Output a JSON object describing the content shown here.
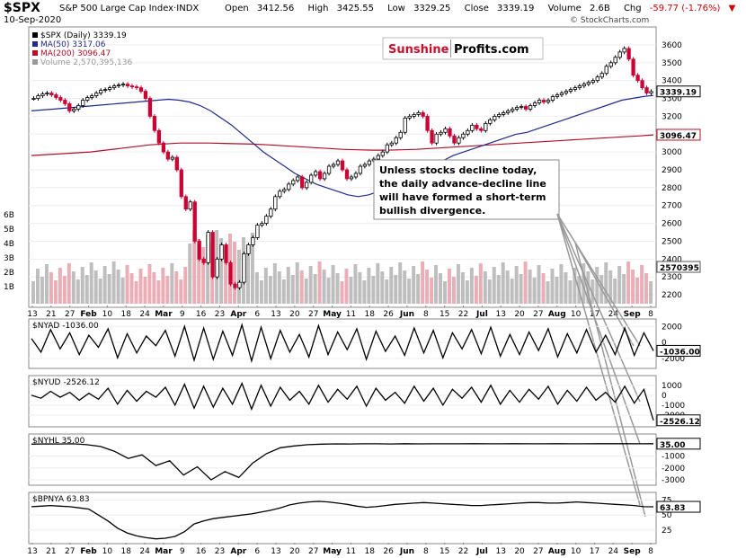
{
  "header": {
    "ticker": "$SPX",
    "index_name": "S&P 500 Large Cap Index",
    "exchange": "INDX",
    "date": "10-Sep-2020",
    "open_label": "Open",
    "open": "3412.56",
    "high_label": "High",
    "high": "3425.55",
    "low_label": "Low",
    "low": "3329.25",
    "close_label": "Close",
    "close": "3339.19",
    "volume_label": "Volume",
    "volume": "2.6B",
    "chg_label": "Chg",
    "chg": "-59.77 (-1.76%)",
    "credit": "© StockCharts.com"
  },
  "colors": {
    "up": "#000000",
    "down": "#cc0033",
    "ma50": "#1f2a8c",
    "ma200": "#b0102a",
    "vol_up": "#b3b3b3",
    "vol_down": "#e8a0aa"
  },
  "chart_data": [
    {
      "type": "line",
      "title": "$SPX (Daily) 3339.19",
      "legend": [
        {
          "label": "$SPX (Daily) 3339.19",
          "color": "#000000"
        },
        {
          "label": "MA(50) 3317.06",
          "color": "#1f2a8c"
        },
        {
          "label": "MA(200) 3096.47",
          "color": "#b0102a"
        },
        {
          "label": "Volume 2,570,395,136",
          "color": "#999999"
        }
      ],
      "ylim": [
        2150,
        3650
      ],
      "yticks": [
        2200,
        2300,
        2400,
        2500,
        2600,
        2700,
        2800,
        2900,
        3000,
        3100,
        3200,
        3300,
        3400,
        3500,
        3600
      ],
      "vol_ticks": [
        "1B",
        "2B",
        "3B",
        "4B",
        "5B",
        "6B"
      ],
      "tags": {
        "close": "3339.19",
        "ma200": "3096.47",
        "volume": "2570395"
      },
      "series": [
        {
          "name": "$SPX",
          "values": [
            3300,
            3315,
            3325,
            3330,
            3320,
            3305,
            3290,
            3270,
            3230,
            3240,
            3260,
            3290,
            3305,
            3315,
            3330,
            3345,
            3350,
            3360,
            3370,
            3375,
            3380,
            3370,
            3365,
            3360,
            3340,
            3300,
            3200,
            3120,
            3050,
            3000,
            2960,
            2970,
            2900,
            2750,
            2680,
            2720,
            2500,
            2400,
            2380,
            2550,
            2300,
            2400,
            2480,
            2380,
            2260,
            2240,
            2270,
            2430,
            2480,
            2520,
            2590,
            2600,
            2640,
            2680,
            2750,
            2780,
            2790,
            2820,
            2840,
            2860,
            2800,
            2830,
            2870,
            2890,
            2850,
            2880,
            2920,
            2930,
            2950,
            2900,
            2850,
            2860,
            2880,
            2920,
            2930,
            2950,
            2960,
            2980,
            3000,
            3040,
            3050,
            3080,
            3110,
            3190,
            3200,
            3210,
            3220,
            3200,
            3120,
            3050,
            3100,
            3110,
            3130,
            3090,
            3050,
            3080,
            3100,
            3120,
            3150,
            3130,
            3120,
            3160,
            3180,
            3200,
            3210,
            3220,
            3230,
            3240,
            3250,
            3255,
            3240,
            3260,
            3275,
            3290,
            3280,
            3290,
            3310,
            3320,
            3330,
            3340,
            3350,
            3360,
            3370,
            3380,
            3390,
            3400,
            3420,
            3440,
            3480,
            3500,
            3530,
            3560,
            3580,
            3520,
            3430,
            3400,
            3360,
            3330,
            3339
          ]
        },
        {
          "name": "MA(50)",
          "values": [
            3230,
            3235,
            3240,
            3245,
            3250,
            3255,
            3260,
            3265,
            3270,
            3275,
            3280,
            3285,
            3290,
            3295,
            3290,
            3280,
            3260,
            3230,
            3190,
            3150,
            3100,
            3050,
            3000,
            2960,
            2920,
            2880,
            2850,
            2820,
            2800,
            2780,
            2760,
            2750,
            2760,
            2780,
            2800,
            2830,
            2860,
            2890,
            2920,
            2950,
            2980,
            3000,
            3020,
            3040,
            3060,
            3080,
            3100,
            3110,
            3130,
            3150,
            3170,
            3190,
            3210,
            3230,
            3250,
            3270,
            3290,
            3300,
            3310,
            3317
          ]
        },
        {
          "name": "MA(200)",
          "values": [
            2980,
            2985,
            2990,
            2995,
            3000,
            3010,
            3020,
            3030,
            3040,
            3045,
            3050,
            3050,
            3050,
            3048,
            3046,
            3044,
            3040,
            3035,
            3030,
            3025,
            3020,
            3015,
            3012,
            3010,
            3010,
            3012,
            3015,
            3020,
            3025,
            3030,
            3035,
            3040,
            3045,
            3050,
            3055,
            3060,
            3065,
            3070,
            3075,
            3080,
            3085,
            3090,
            3096
          ]
        }
      ],
      "x_ticks": [
        "13",
        "21",
        "27",
        "Feb",
        "10",
        "18",
        "24",
        "Mar",
        "9",
        "16",
        "23",
        "Apr",
        "6",
        "13",
        "20",
        "27",
        "May",
        "11",
        "18",
        "26",
        "Jun",
        "8",
        "15",
        "22",
        "Jul",
        "13",
        "20",
        "27",
        "Aug",
        "10",
        "17",
        "24",
        "Sep",
        "8"
      ]
    },
    {
      "type": "line",
      "title": "$NYAD -1036.00",
      "ylim": [
        -3000,
        2700
      ],
      "yticks": [
        "2000",
        "0",
        "-2000"
      ],
      "tag": "-1036.00",
      "series": [
        {
          "name": "$NYAD",
          "values": [
            500,
            -1200,
            1600,
            -800,
            1200,
            -1500,
            900,
            -600,
            1700,
            -1900,
            1100,
            -1300,
            800,
            -400,
            1500,
            -1700,
            2000,
            -2200,
            1800,
            -2100,
            1400,
            -1600,
            2200,
            -2300,
            1900,
            -2000,
            1500,
            -1200,
            1000,
            -1800,
            2100,
            -1500,
            1300,
            -900,
            1700,
            -2100,
            1400,
            -1100,
            800,
            -1600,
            1800,
            -1300,
            1500,
            -1900,
            1200,
            -800,
            1600,
            -1400,
            1900,
            -1700,
            1000,
            -1500,
            1300,
            -1000,
            1700,
            -1800,
            1100,
            -1300,
            1600,
            -1200,
            900,
            -1500,
            1800,
            -1600,
            1200,
            -1036
          ]
        }
      ]
    },
    {
      "type": "line",
      "title": "$NYUD -2526.12",
      "ylim": [
        -3000,
        1800
      ],
      "yticks": [
        "1000",
        "0",
        "-1000",
        "-2000"
      ],
      "tag": "-2526.12",
      "series": [
        {
          "name": "$NYUD",
          "values": [
            0,
            -300,
            400,
            -200,
            300,
            -500,
            200,
            -400,
            700,
            -900,
            500,
            -600,
            400,
            -200,
            800,
            -1000,
            1100,
            -1300,
            900,
            -1200,
            700,
            -900,
            1200,
            -1400,
            1000,
            -1100,
            800,
            -500,
            400,
            -900,
            1000,
            -700,
            600,
            -400,
            900,
            -1100,
            700,
            -500,
            300,
            -800,
            900,
            -600,
            700,
            -1000,
            600,
            -300,
            800,
            -700,
            1000,
            -900,
            500,
            -700,
            600,
            -400,
            900,
            -900,
            500,
            -600,
            800,
            -500,
            300,
            -700,
            900,
            -800,
            600,
            -2526
          ]
        }
      ]
    },
    {
      "type": "line",
      "title": "$NYHL 35.00",
      "ylim": [
        -3300,
        700
      ],
      "yticks": [
        "-1000",
        "-2000",
        "-3000"
      ],
      "tag": "35.00",
      "series": [
        {
          "name": "$NYHL",
          "values": [
            0,
            20,
            10,
            30,
            -50,
            -200,
            -600,
            -1200,
            -900,
            -1800,
            -1400,
            -2600,
            -1900,
            -3000,
            -2300,
            -2800,
            -1600,
            -800,
            -300,
            -150,
            -50,
            0,
            20,
            10,
            25,
            30,
            15,
            35,
            20,
            30,
            25,
            30,
            35,
            30,
            25,
            35,
            30,
            28,
            35,
            32,
            30,
            35,
            33,
            35,
            30,
            35
          ]
        }
      ]
    },
    {
      "type": "line",
      "title": "$BPNYA 63.83",
      "ylim": [
        5,
        85
      ],
      "yticks": [
        "75",
        "50",
        "25"
      ],
      "tag": "63.83",
      "series": [
        {
          "name": "$BPNYA",
          "values": [
            64,
            65,
            66,
            65,
            64,
            62,
            60,
            50,
            40,
            28,
            20,
            15,
            12,
            10,
            11,
            14,
            22,
            35,
            40,
            44,
            46,
            48,
            50,
            52,
            55,
            58,
            62,
            67,
            70,
            72,
            73,
            72,
            70,
            68,
            65,
            63,
            64,
            66,
            68,
            69,
            70,
            71,
            70,
            69,
            68,
            67,
            66,
            66,
            67,
            68,
            69,
            70,
            71,
            71,
            70,
            70,
            71,
            72,
            71,
            70,
            69,
            68,
            67,
            66,
            64,
            63.83
          ]
        }
      ]
    }
  ]
}
